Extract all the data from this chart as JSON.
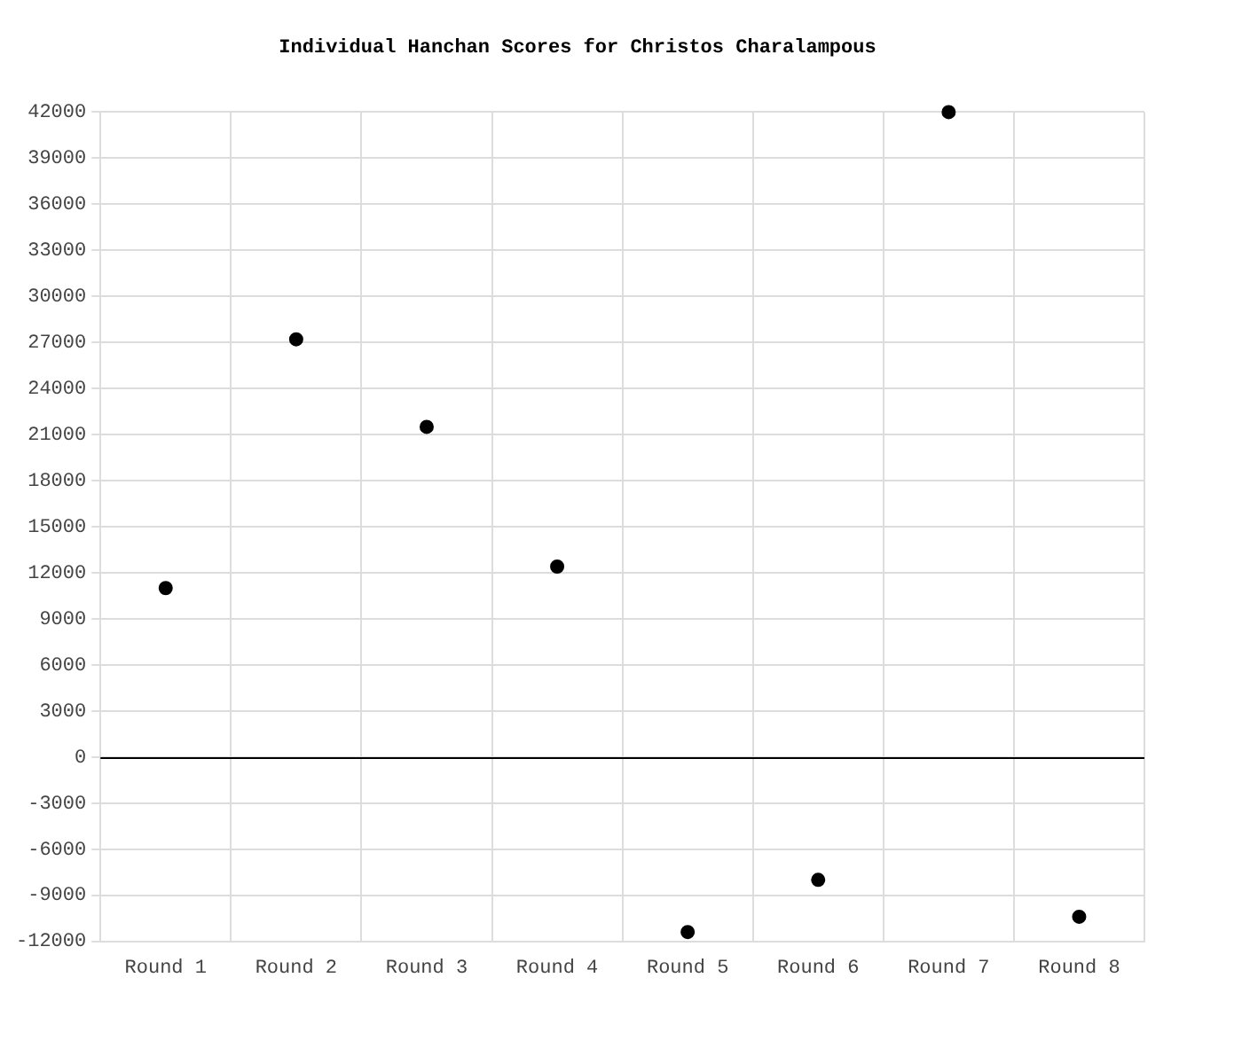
{
  "chart_data": {
    "type": "scatter",
    "title": "Individual Hanchan Scores for Christos Charalampous",
    "categories": [
      "Round 1",
      "Round 2",
      "Round 3",
      "Round 4",
      "Round 5",
      "Round 6",
      "Round 7",
      "Round 8"
    ],
    "series": [
      {
        "color": "#000000",
        "values": [
          11000,
          27200,
          21500,
          12400,
          -11400,
          -8000,
          42000,
          -10400
        ]
      }
    ],
    "ylim": [
      -12000,
      42000
    ],
    "yticks": [
      -12000,
      -9000,
      -6000,
      -3000,
      0,
      3000,
      6000,
      9000,
      12000,
      15000,
      18000,
      21000,
      24000,
      27000,
      30000,
      33000,
      36000,
      39000,
      42000
    ],
    "ref_lines": [
      {
        "axis": "y",
        "value": 0,
        "color": "#000000"
      }
    ],
    "grid": true,
    "legend": false,
    "marker": "circle"
  }
}
